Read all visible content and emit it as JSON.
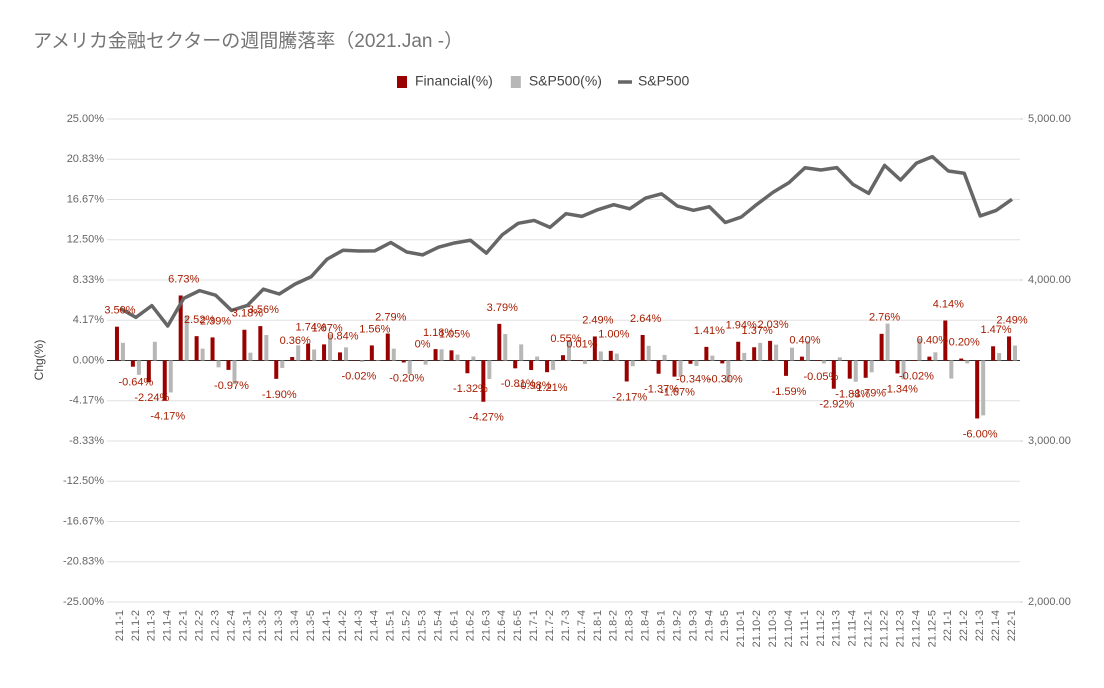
{
  "chart_data": {
    "type": "bar",
    "title": "アメリカ金融セクターの週間騰落率（2021.Jan -）",
    "ylabel": "Chg(%)",
    "grid": true,
    "legend": "top",
    "categories": [
      "21.1-1",
      "21.1-2",
      "21.1-3",
      "21.1-4",
      "21.2-1",
      "21.2-2",
      "21.2-3",
      "21.2-4",
      "21.3-1",
      "21.3-2",
      "21.3-3",
      "21.3-4",
      "21.3-5",
      "21.4-1",
      "21.4-2",
      "21.4-3",
      "21.4-4",
      "21.5-1",
      "21.5-2",
      "21.5-3",
      "21.5-4",
      "21.6-1",
      "21.6-2",
      "21.6-3",
      "21.6-4",
      "21.6-5",
      "21.7-1",
      "21.7-2",
      "21.7-3",
      "21.7-4",
      "21.8-1",
      "21.8-2",
      "21.8-3",
      "21.8-4",
      "21.9-1",
      "21.9-2",
      "21.9-3",
      "21.9-4",
      "21.9-5",
      "21.10-1",
      "21.10-2",
      "21.10-3",
      "21.10-4",
      "21.11-1",
      "21.11-2",
      "21.11-3",
      "21.11-4",
      "21.12-1",
      "21.12-2",
      "21.12-3",
      "21.12-4",
      "21.12-5",
      "22.1-1",
      "22.1-2",
      "22.1-3",
      "22.1-4",
      "22.2-1"
    ],
    "series": [
      {
        "name": "Financial(%)",
        "color": "#990000",
        "type": "bar",
        "values": [
          3.5,
          -0.64,
          -2.24,
          -4.17,
          6.73,
          2.52,
          2.39,
          -0.97,
          3.18,
          3.56,
          -1.9,
          0.36,
          1.74,
          1.67,
          0.84,
          -0.02,
          1.56,
          2.79,
          -0.2,
          0,
          1.18,
          1.05,
          -1.32,
          -4.27,
          3.79,
          -0.81,
          -0.98,
          -1.21,
          0.55,
          0.01,
          2.49,
          1.0,
          -2.17,
          2.64,
          -1.37,
          -1.67,
          -0.34,
          1.41,
          -0.3,
          1.94,
          1.37,
          2.03,
          -1.59,
          0.4,
          -0.05,
          -2.92,
          -1.88,
          -1.79,
          2.76,
          -1.34,
          -0.02,
          0.4,
          4.14,
          0.2,
          -6.0,
          1.47,
          2.49
        ],
        "value_labels": [
          "3.50%",
          "-0.64%",
          "-2.24%",
          "-4.17%",
          "6.73%",
          "2.52%",
          "2.39%",
          "-0.97%",
          "3.18%",
          "3.56%",
          "-1.90%",
          "0.36%",
          "1.74%",
          "1.67%",
          "0.84%",
          "-0.02%",
          "1.56%",
          "2.79%",
          "-0.20%",
          "0%",
          "1.18%",
          "1.05%",
          "-1.32%",
          "-4.27%",
          "3.79%",
          "-0.81%",
          "-0.98%",
          "-1.21%",
          "0.55%",
          "0.01%",
          "2.49%",
          "1.00%",
          "-2.17%",
          "2.64%",
          "-1.37%",
          "-1.67%",
          "-0.34%",
          "1.41%",
          "-0.30%",
          "1.94%",
          "1.37%",
          "2.03%",
          "-1.59%",
          "0.40%",
          "-0.05%",
          "-2.92%",
          "-1.88%",
          "-1.79%",
          "2.76%",
          "-1.34%",
          "-0.02%",
          "0.40%",
          "4.14%",
          "0.20%",
          "-6.00%",
          "1.47%",
          "2.49%"
        ]
      },
      {
        "name": "S&P500(%)",
        "color": "#b7b7b7",
        "type": "bar",
        "values": [
          1.83,
          -1.48,
          1.94,
          -3.31,
          4.65,
          1.23,
          -0.71,
          -2.45,
          0.81,
          2.64,
          -0.77,
          1.57,
          1.14,
          2.71,
          1.36,
          -0.13,
          0.02,
          1.23,
          -1.39,
          -0.43,
          1.16,
          0.61,
          0.41,
          -1.91,
          2.74,
          1.67,
          0.41,
          -0.97,
          1.96,
          -0.37,
          0.94,
          0.71,
          -0.59,
          1.52,
          0.58,
          -1.69,
          -0.57,
          0.51,
          -2.21,
          0.79,
          1.82,
          1.64,
          1.33,
          2.0,
          -0.31,
          0.32,
          -2.2,
          -1.22,
          3.82,
          -1.94,
          2.28,
          0.85,
          -1.87,
          -0.3,
          -5.68,
          0.77,
          1.55
        ]
      },
      {
        "name": "S&P500",
        "color": "#666666",
        "type": "line",
        "axis": "y2",
        "values": [
          3824,
          3768,
          3841,
          3714,
          3886,
          3934,
          3906,
          3811,
          3842,
          3943,
          3913,
          3975,
          4020,
          4129,
          4185,
          4180,
          4181,
          4233,
          4174,
          4156,
          4204,
          4230,
          4247,
          4167,
          4281,
          4352,
          4370,
          4327,
          4412,
          4395,
          4437,
          4468,
          4442,
          4509,
          4535,
          4459,
          4433,
          4455,
          4357,
          4391,
          4471,
          4545,
          4605,
          4697,
          4683,
          4698,
          4595,
          4538,
          4712,
          4621,
          4726,
          4766,
          4677,
          4663,
          4398,
          4432,
          4501
        ]
      }
    ],
    "ylim": [
      -25,
      25
    ],
    "yticks": [
      {
        "value": -25,
        "label": "-25.00%"
      },
      {
        "value": -20.8333,
        "label": "-20.83%"
      },
      {
        "value": -16.6667,
        "label": "-16.67%"
      },
      {
        "value": -12.5,
        "label": "-12.50%"
      },
      {
        "value": -8.3333,
        "label": "-8.33%"
      },
      {
        "value": -4.1667,
        "label": "-4.17%"
      },
      {
        "value": 0,
        "label": "0.00%"
      },
      {
        "value": 4.1667,
        "label": "4.17%"
      },
      {
        "value": 8.3333,
        "label": "8.33%"
      },
      {
        "value": 12.5,
        "label": "12.50%"
      },
      {
        "value": 16.6667,
        "label": "16.67%"
      },
      {
        "value": 20.8333,
        "label": "20.83%"
      },
      {
        "value": 25,
        "label": "25.00%"
      }
    ],
    "y2lim": [
      2000,
      5000
    ],
    "y2ticks": [
      {
        "value": 2000,
        "label": "2,000.00"
      },
      {
        "value": 3000,
        "label": "3,000.00"
      },
      {
        "value": 4000,
        "label": "4,000.00"
      },
      {
        "value": 5000,
        "label": "5,000.00"
      }
    ]
  }
}
